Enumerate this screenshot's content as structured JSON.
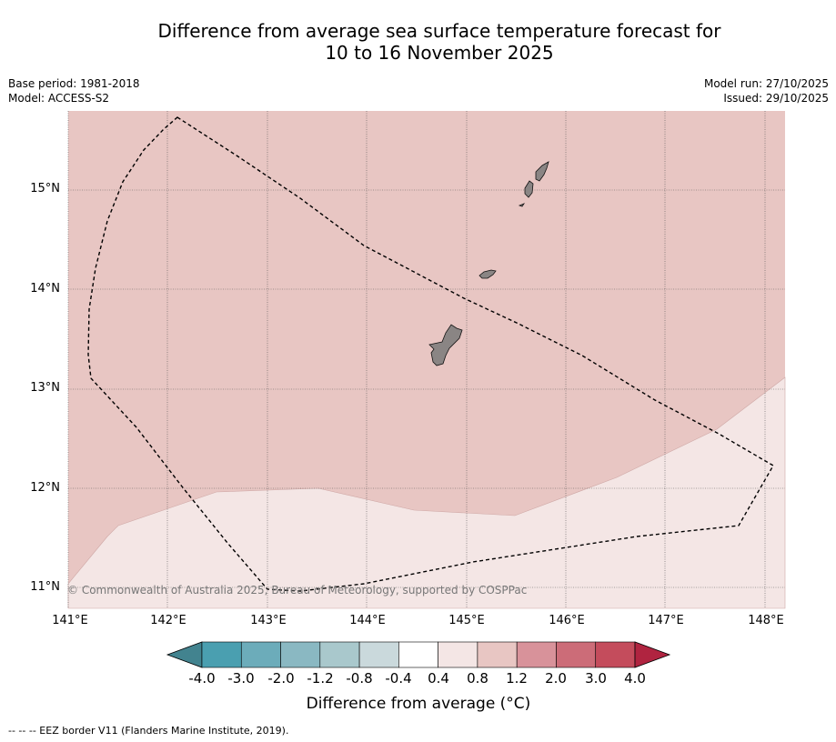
{
  "title_line1": "Difference from average sea surface temperature forecast for",
  "title_line2": "10 to 16 November 2025",
  "meta_left": {
    "base_period": "Base period: 1981-2018",
    "model": "Model: ACCESS-S2"
  },
  "meta_right": {
    "model_run": "Model run: 27/10/2025",
    "issued": "Issued: 29/10/2025"
  },
  "map": {
    "lon_range": [
      141.0,
      148.2
    ],
    "lat_range": [
      10.8,
      15.8
    ],
    "lon_ticks": [
      "141°E",
      "142°E",
      "143°E",
      "144°E",
      "145°E",
      "146°E",
      "147°E",
      "148°E"
    ],
    "lat_ticks": [
      "15°N",
      "14°N",
      "13°N",
      "12°N",
      "11°N"
    ],
    "credit": "© Commonwealth of Australia 2025, Bureau of Meteorology, supported by COSPPac",
    "anomaly_regions": [
      {
        "class": "0.8 to 1.2",
        "color": "#e8c6c3"
      },
      {
        "class": "0.4 to 0.8",
        "color": "#f4e6e5"
      }
    ],
    "land_color": "#8a8584",
    "islands": [
      "Guam",
      "Rota",
      "Tinian",
      "Saipan"
    ],
    "eez_border_label": "EEZ border"
  },
  "colorbar": {
    "ticks": [
      "-4.0",
      "-3.0",
      "-2.0",
      "-1.2",
      "-0.8",
      "-0.4",
      "0.4",
      "0.8",
      "1.2",
      "2.0",
      "3.0",
      "4.0"
    ],
    "colors": [
      "#4a9fb0",
      "#6cacba",
      "#8ab8c2",
      "#a9c8cc",
      "#cad9dc",
      "#ffffff",
      "#f4e6e5",
      "#e8c6c3",
      "#d8929a",
      "#cc6c78",
      "#c44c5c"
    ],
    "under_color": "#42838f",
    "over_color": "#b02440",
    "label": "Difference from average ($^\\circ$C)",
    "label_display": "Difference from average (°C)"
  },
  "footnote": "--  --  -- EEZ border V11 (Flanders Marine Institute, 2019)."
}
